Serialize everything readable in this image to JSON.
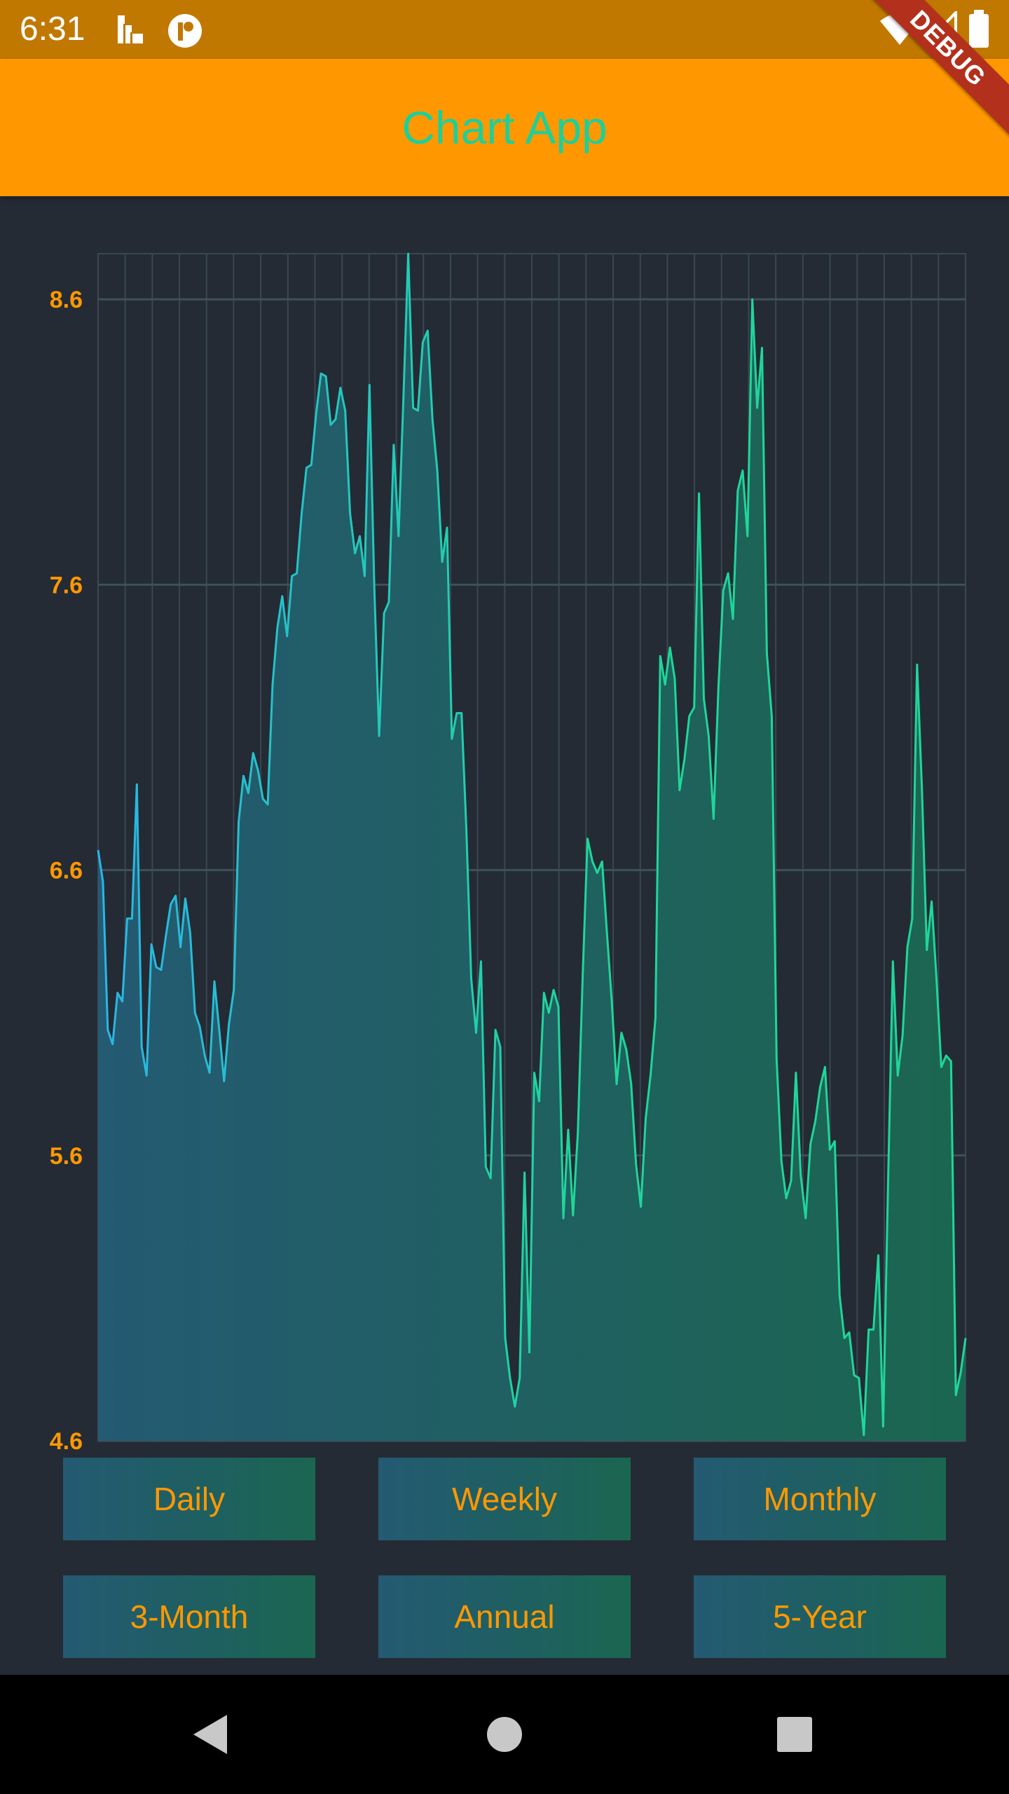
{
  "status_bar": {
    "time": "6:31",
    "left_icons": [
      "chart-icon",
      "app-logo-icon"
    ],
    "right_icons": [
      "wifi-icon",
      "cellular-signal-icon",
      "battery-icon"
    ]
  },
  "app_bar": {
    "title": "Chart App"
  },
  "debug_banner": {
    "label": "DEBUG"
  },
  "colors": {
    "status_bar": "#c17800",
    "app_bar": "#ff9800",
    "title": "#1fcf99",
    "background": "#242b35",
    "line_start": "#29b6e6",
    "line_end": "#1fd69a",
    "fill_start": "#245a72",
    "fill_end": "#1b6650",
    "axis_label": "#ff9800",
    "debug": "#b3301c"
  },
  "chart_data": {
    "type": "area",
    "ylim": [
      4.6,
      8.76
    ],
    "yticks": [
      "8.6",
      "7.6",
      "6.6",
      "5.6",
      "4.6"
    ],
    "grid": true,
    "x_count": 192,
    "values": [
      6.67,
      6.56,
      6.04,
      5.99,
      6.17,
      6.14,
      6.43,
      6.43,
      6.9,
      5.98,
      5.88,
      6.34,
      6.26,
      6.25,
      6.37,
      6.48,
      6.51,
      6.33,
      6.5,
      6.38,
      6.1,
      6.05,
      5.95,
      5.89,
      6.21,
      6.04,
      5.86,
      6.06,
      6.18,
      6.77,
      6.93,
      6.87,
      7.01,
      6.95,
      6.85,
      6.83,
      7.25,
      7.45,
      7.56,
      7.42,
      7.63,
      7.64,
      7.85,
      8.01,
      8.02,
      8.2,
      8.34,
      8.33,
      8.16,
      8.18,
      8.29,
      8.21,
      7.85,
      7.71,
      7.77,
      7.63,
      8.3,
      7.59,
      7.07,
      7.5,
      7.54,
      8.09,
      7.77,
      8.25,
      8.76,
      8.22,
      8.21,
      8.45,
      8.49,
      8.18,
      8.0,
      7.68,
      7.8,
      7.06,
      7.15,
      7.15,
      6.74,
      6.22,
      6.03,
      6.28,
      5.56,
      5.52,
      6.04,
      5.98,
      4.96,
      4.82,
      4.72,
      4.82,
      5.54,
      4.91,
      5.89,
      5.79,
      6.17,
      6.1,
      6.18,
      6.12,
      5.38,
      5.69,
      5.39,
      5.68,
      6.23,
      6.71,
      6.63,
      6.59,
      6.63,
      6.38,
      6.14,
      5.85,
      6.03,
      5.97,
      5.85,
      5.57,
      5.42,
      5.73,
      5.88,
      6.08,
      7.35,
      7.25,
      7.38,
      7.27,
      6.88,
      6.99,
      7.14,
      7.17,
      7.92,
      7.2,
      7.07,
      6.78,
      7.24,
      7.58,
      7.64,
      7.48,
      7.93,
      8.0,
      7.77,
      8.6,
      8.22,
      8.43,
      7.36,
      7.14,
      5.94,
      5.58,
      5.45,
      5.51,
      5.89,
      5.53,
      5.38,
      5.64,
      5.72,
      5.84,
      5.91,
      5.62,
      5.65,
      5.11,
      4.96,
      4.98,
      4.83,
      4.82,
      4.62,
      4.99,
      4.99,
      5.25,
      4.65,
      5.49,
      6.28,
      5.88,
      6.02,
      6.33,
      6.43,
      7.32,
      6.88,
      6.32,
      6.49,
      6.22,
      5.91,
      5.95,
      5.93,
      4.76,
      4.84,
      4.96
    ]
  },
  "range_buttons": [
    {
      "label": "Daily"
    },
    {
      "label": "Weekly"
    },
    {
      "label": "Monthly"
    },
    {
      "label": "3-Month"
    },
    {
      "label": "Annual"
    },
    {
      "label": "5-Year"
    }
  ],
  "nav_bar": {
    "icons": [
      "back-icon",
      "home-icon",
      "recents-icon"
    ]
  }
}
